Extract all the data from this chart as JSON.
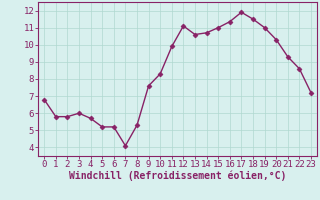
{
  "x": [
    0,
    1,
    2,
    3,
    4,
    5,
    6,
    7,
    8,
    9,
    10,
    11,
    12,
    13,
    14,
    15,
    16,
    17,
    18,
    19,
    20,
    21,
    22,
    23
  ],
  "y": [
    6.8,
    5.8,
    5.8,
    6.0,
    5.7,
    5.2,
    5.2,
    4.1,
    5.3,
    7.6,
    8.3,
    9.9,
    11.1,
    10.6,
    10.7,
    11.0,
    11.35,
    11.9,
    11.5,
    11.0,
    10.3,
    9.3,
    8.6,
    7.2
  ],
  "line_color": "#882266",
  "marker": "D",
  "markersize": 2.5,
  "linewidth": 1.0,
  "xlabel": "Windchill (Refroidissement éolien,°C)",
  "xlabel_fontsize": 7,
  "ylabel": "",
  "title": "",
  "xlim": [
    -0.5,
    23.5
  ],
  "ylim": [
    3.5,
    12.5
  ],
  "yticks": [
    4,
    5,
    6,
    7,
    8,
    9,
    10,
    11,
    12
  ],
  "xticks": [
    0,
    1,
    2,
    3,
    4,
    5,
    6,
    7,
    8,
    9,
    10,
    11,
    12,
    13,
    14,
    15,
    16,
    17,
    18,
    19,
    20,
    21,
    22,
    23
  ],
  "grid_color": "#b0d8d0",
  "bg_color": "#d8f0ee",
  "tick_label_color": "#882266",
  "tick_label_fontsize": 6.5,
  "spine_color": "#882266",
  "xlabel_color": "#882266"
}
